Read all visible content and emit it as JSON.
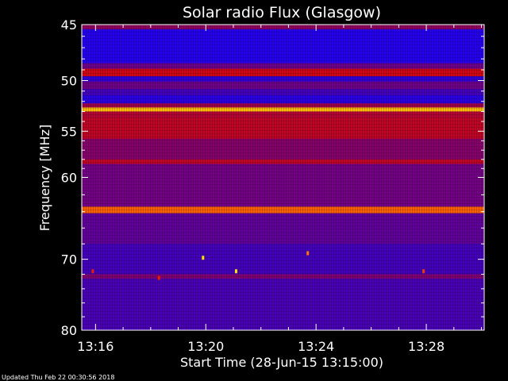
{
  "chart_data": {
    "type": "heatmap",
    "title": "Solar radio Flux (Glasgow)",
    "xlabel": "Start Time (28-Jun-15 13:15:00)",
    "ylabel": "Frequency [MHz]",
    "x_unit": "minutes after 13:15:00",
    "xlim": [
      0.5,
      15.1
    ],
    "ylim": [
      80,
      45
    ],
    "y_scale": "log",
    "x_ticks": [
      {
        "value": 1,
        "label": "13:16"
      },
      {
        "value": 5,
        "label": "13:20"
      },
      {
        "value": 9,
        "label": "13:24"
      },
      {
        "value": 13,
        "label": "13:28"
      }
    ],
    "y_ticks": [
      {
        "value": 45,
        "label": "45"
      },
      {
        "value": 50,
        "label": "50"
      },
      {
        "value": 55,
        "label": "55"
      },
      {
        "value": 60,
        "label": "60"
      },
      {
        "value": 70,
        "label": "70"
      },
      {
        "value": 80,
        "label": "80"
      }
    ],
    "colormap": [
      "#1a00ff",
      "#3b00c8",
      "#6a0090",
      "#a0004a",
      "#e40a00",
      "#ff6a00",
      "#ffe000"
    ],
    "bands": [
      {
        "from": 45.0,
        "to": 45.4,
        "level": 0.45
      },
      {
        "from": 45.4,
        "to": 48.4,
        "level": 0.05
      },
      {
        "from": 48.4,
        "to": 48.9,
        "level": 0.35
      },
      {
        "from": 48.9,
        "to": 49.6,
        "level": 0.62
      },
      {
        "from": 49.6,
        "to": 50.1,
        "level": 0.12
      },
      {
        "from": 50.1,
        "to": 50.8,
        "level": 0.35
      },
      {
        "from": 50.8,
        "to": 51.4,
        "level": 0.2
      },
      {
        "from": 51.4,
        "to": 52.2,
        "level": 0.08
      },
      {
        "from": 52.2,
        "to": 52.6,
        "level": 0.5
      },
      {
        "from": 52.6,
        "to": 53.0,
        "level": 0.95
      },
      {
        "from": 53.0,
        "to": 53.6,
        "level": 0.55
      },
      {
        "from": 53.6,
        "to": 55.8,
        "level": 0.58
      },
      {
        "from": 55.8,
        "to": 58.0,
        "level": 0.42
      },
      {
        "from": 58.0,
        "to": 58.5,
        "level": 0.58
      },
      {
        "from": 58.5,
        "to": 63.4,
        "level": 0.36
      },
      {
        "from": 63.4,
        "to": 64.2,
        "level": 0.82
      },
      {
        "from": 64.2,
        "to": 68.0,
        "level": 0.3
      },
      {
        "from": 68.0,
        "to": 72.0,
        "level": 0.2
      },
      {
        "from": 72.0,
        "to": 72.6,
        "level": 0.4
      },
      {
        "from": 72.6,
        "to": 80.0,
        "level": 0.22
      }
    ],
    "bursts": [
      {
        "x": 4.9,
        "y": 69.8,
        "level": 1.0
      },
      {
        "x": 6.1,
        "y": 71.6,
        "level": 1.0
      },
      {
        "x": 8.7,
        "y": 69.2,
        "level": 0.85
      },
      {
        "x": 0.9,
        "y": 71.6,
        "level": 0.7
      },
      {
        "x": 12.9,
        "y": 71.6,
        "level": 0.75
      },
      {
        "x": 3.3,
        "y": 72.5,
        "level": 0.7
      }
    ],
    "footer": "Updated Thu Feb 22 00:30:56 2018"
  }
}
